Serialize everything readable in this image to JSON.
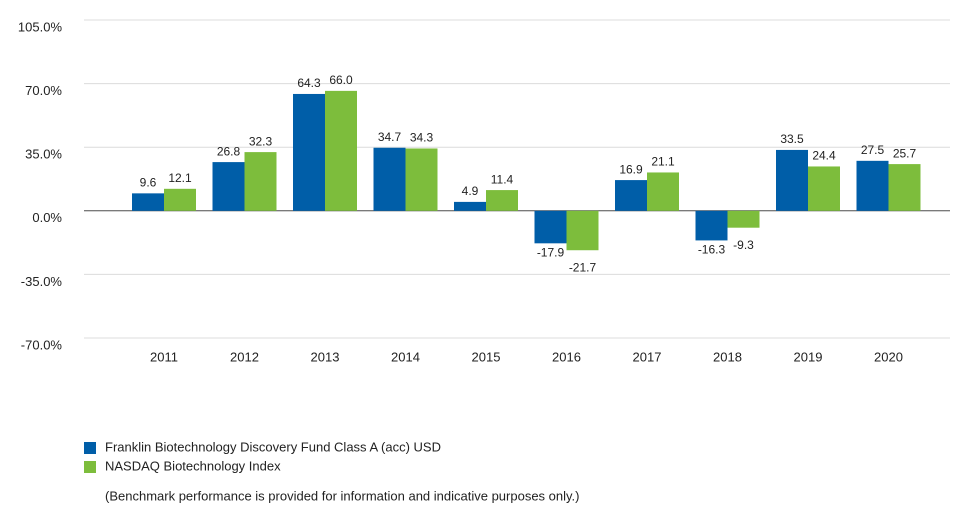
{
  "chart_data": {
    "type": "bar",
    "categories": [
      "2011",
      "2012",
      "2013",
      "2014",
      "2015",
      "2016",
      "2017",
      "2018",
      "2019",
      "2020"
    ],
    "series": [
      {
        "name": "Franklin Biotechnology Discovery Fund Class A (acc) USD",
        "color": "#005ea8",
        "values": [
          9.6,
          26.8,
          64.3,
          34.7,
          4.9,
          -17.9,
          16.9,
          -16.3,
          33.5,
          27.5
        ],
        "value_labels": [
          "9.6",
          "26.8",
          "64.3",
          "34.7",
          "4.9",
          "-17.9",
          "16.9",
          "-16.3",
          "33.5",
          "27.5"
        ]
      },
      {
        "name": "NASDAQ Biotechnology Index",
        "color": "#7dbd3c",
        "values": [
          12.1,
          32.3,
          66.0,
          34.3,
          11.4,
          -21.7,
          21.1,
          -9.3,
          24.4,
          25.7
        ],
        "value_labels": [
          "12.1",
          "32.3",
          "66.0",
          "34.3",
          "11.4",
          "-21.7",
          "21.1",
          "-9.3",
          "24.4",
          "25.7"
        ]
      }
    ],
    "ylim": [
      -70,
      105
    ],
    "yticks": [
      {
        "value": -70,
        "label": "-70.0%"
      },
      {
        "value": -35,
        "label": "-35.0%"
      },
      {
        "value": 0,
        "label": "0.0%"
      },
      {
        "value": 35,
        "label": "35.0%"
      },
      {
        "value": 70,
        "label": "70.0%"
      },
      {
        "value": 105,
        "label": "105.0%"
      }
    ],
    "grid": true,
    "note": "(Benchmark performance is provided for information and indicative purposes only.)"
  }
}
